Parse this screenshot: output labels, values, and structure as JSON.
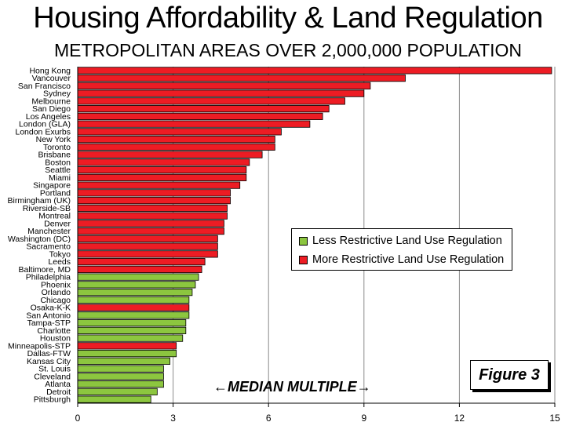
{
  "chart_data": {
    "type": "bar",
    "orientation": "horizontal",
    "title": "Housing Affordability & Land Regulation",
    "subtitle": "METROPOLITAN AREAS OVER 2,000,000 POPULATION",
    "annotation": "MEDIAN MULTIPLE",
    "figure_label": "Figure 3",
    "xlim": [
      0,
      15
    ],
    "xticks": [
      0,
      3,
      6,
      9,
      12,
      15
    ],
    "grid": "vertical",
    "legend_position": "center-right",
    "legend": [
      {
        "label": "Less Restrictive Land Use Regulation",
        "color": "#8cc63f"
      },
      {
        "label": "More Restrictive Land Use Regulation",
        "color": "#ed1c24"
      }
    ],
    "bars": [
      {
        "label": "Hong Kong",
        "value": 14.9,
        "group": "more"
      },
      {
        "label": "Vancouver",
        "value": 10.3,
        "group": "more"
      },
      {
        "label": "San Francisco",
        "value": 9.2,
        "group": "more"
      },
      {
        "label": "Sydney",
        "value": 9.0,
        "group": "more"
      },
      {
        "label": "Melbourne",
        "value": 8.4,
        "group": "more"
      },
      {
        "label": "San Diego",
        "value": 7.9,
        "group": "more"
      },
      {
        "label": "Los Angeles",
        "value": 7.7,
        "group": "more"
      },
      {
        "label": "London (GLA)",
        "value": 7.3,
        "group": "more"
      },
      {
        "label": "London Exurbs",
        "value": 6.4,
        "group": "more"
      },
      {
        "label": "New York",
        "value": 6.2,
        "group": "more"
      },
      {
        "label": "Toronto",
        "value": 6.2,
        "group": "more"
      },
      {
        "label": "Brisbane",
        "value": 5.8,
        "group": "more"
      },
      {
        "label": "Boston",
        "value": 5.4,
        "group": "more"
      },
      {
        "label": "Seattle",
        "value": 5.3,
        "group": "more"
      },
      {
        "label": "Miami",
        "value": 5.3,
        "group": "more"
      },
      {
        "label": "Singapore",
        "value": 5.1,
        "group": "more"
      },
      {
        "label": "Portland",
        "value": 4.8,
        "group": "more"
      },
      {
        "label": "Birmingham (UK)",
        "value": 4.8,
        "group": "more"
      },
      {
        "label": "Riverside-SB",
        "value": 4.7,
        "group": "more"
      },
      {
        "label": "Montreal",
        "value": 4.7,
        "group": "more"
      },
      {
        "label": "Denver",
        "value": 4.6,
        "group": "more"
      },
      {
        "label": "Manchester",
        "value": 4.6,
        "group": "more"
      },
      {
        "label": "Washington (DC)",
        "value": 4.4,
        "group": "more"
      },
      {
        "label": "Sacramento",
        "value": 4.4,
        "group": "more"
      },
      {
        "label": "Tokyo",
        "value": 4.4,
        "group": "more"
      },
      {
        "label": "Leeds",
        "value": 4.0,
        "group": "more"
      },
      {
        "label": "Baltimore, MD",
        "value": 3.9,
        "group": "more"
      },
      {
        "label": "Philadelphia",
        "value": 3.8,
        "group": "less"
      },
      {
        "label": "Phoenix",
        "value": 3.7,
        "group": "less"
      },
      {
        "label": "Orlando",
        "value": 3.6,
        "group": "less"
      },
      {
        "label": "Chicago",
        "value": 3.5,
        "group": "less"
      },
      {
        "label": "Osaka-K-K",
        "value": 3.5,
        "group": "more"
      },
      {
        "label": "San Antonio",
        "value": 3.5,
        "group": "less"
      },
      {
        "label": "Tampa-STP",
        "value": 3.4,
        "group": "less"
      },
      {
        "label": "Charlotte",
        "value": 3.4,
        "group": "less"
      },
      {
        "label": "Houston",
        "value": 3.3,
        "group": "less"
      },
      {
        "label": "Minneapolis-STP",
        "value": 3.1,
        "group": "more"
      },
      {
        "label": "Dallas-FTW",
        "value": 3.1,
        "group": "less"
      },
      {
        "label": "Kansas City",
        "value": 2.9,
        "group": "less"
      },
      {
        "label": "St. Louis",
        "value": 2.7,
        "group": "less"
      },
      {
        "label": "Cleveland",
        "value": 2.7,
        "group": "less"
      },
      {
        "label": "Atlanta",
        "value": 2.7,
        "group": "less"
      },
      {
        "label": "Detroit",
        "value": 2.5,
        "group": "less"
      },
      {
        "label": "Pittsburgh",
        "value": 2.3,
        "group": "less"
      }
    ]
  }
}
